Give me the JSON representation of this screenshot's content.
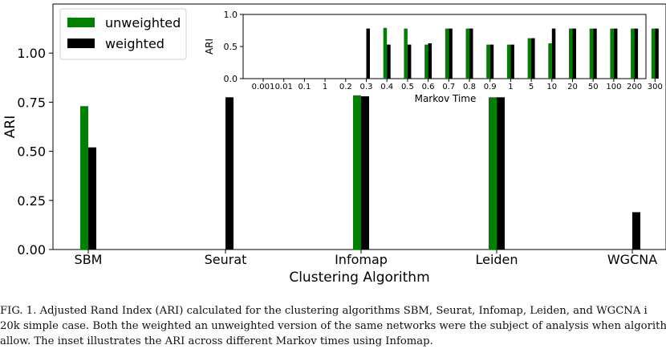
{
  "colors": {
    "unweighted": "#008000",
    "weighted": "#000000"
  },
  "chart_data": [
    {
      "type": "bar",
      "categories": [
        "SBM",
        "Seurat",
        "Infomap",
        "Leiden",
        "WGCNA"
      ],
      "series": [
        {
          "name": "unweighted",
          "values": [
            0.73,
            0.0,
            0.785,
            0.775,
            0.0
          ]
        },
        {
          "name": "weighted",
          "values": [
            0.52,
            0.775,
            0.78,
            0.775,
            0.19
          ]
        }
      ],
      "xlabel": "Clustering Algorithm",
      "ylabel": "ARI",
      "ylim": [
        0,
        1.25
      ],
      "yticks": [
        "0.00",
        "0.25",
        "0.50",
        "0.75",
        "1.00"
      ],
      "legend": "top-left",
      "grid": false
    },
    {
      "type": "bar",
      "categories": [
        "0.001",
        "0.01",
        "0.1",
        "1",
        "0.2",
        "0.3",
        "0.4",
        "0.5",
        "0.6",
        "0.7",
        "0.8",
        "0.9",
        "1",
        "5",
        "10",
        "20",
        "50",
        "100",
        "200",
        "300"
      ],
      "series": [
        {
          "name": "unweighted",
          "values": [
            0,
            0,
            0,
            0,
            0,
            0,
            0.79,
            0.78,
            0.53,
            0.78,
            0.78,
            0.53,
            0.53,
            0.63,
            0.55,
            0.78,
            0.78,
            0.78,
            0.78,
            0.78
          ]
        },
        {
          "name": "weighted",
          "values": [
            0.005,
            0.005,
            0.005,
            0.005,
            0.005,
            0.78,
            0.53,
            0.53,
            0.55,
            0.78,
            0.78,
            0.53,
            0.53,
            0.63,
            0.78,
            0.78,
            0.78,
            0.78,
            0.78,
            0.78
          ]
        }
      ],
      "xlabel": "Markov Time",
      "ylabel": "ARI",
      "ylim": [
        0,
        1.0
      ],
      "yticks": [
        "0.0",
        "0.5",
        "1.0"
      ],
      "grid": false
    }
  ],
  "caption": {
    "lines": [
      "FIG. 1. Adjusted Rand Index (ARI) calculated for the clustering algorithms SBM, Seurat, Infomap, Leiden, and WGCNA i",
      "20k simple case. Both the weighted an unweighted version of the same networks were the subject of analysis when algorithm",
      "allow. The inset illustrates the ARI across different Markov times using Infomap."
    ]
  }
}
